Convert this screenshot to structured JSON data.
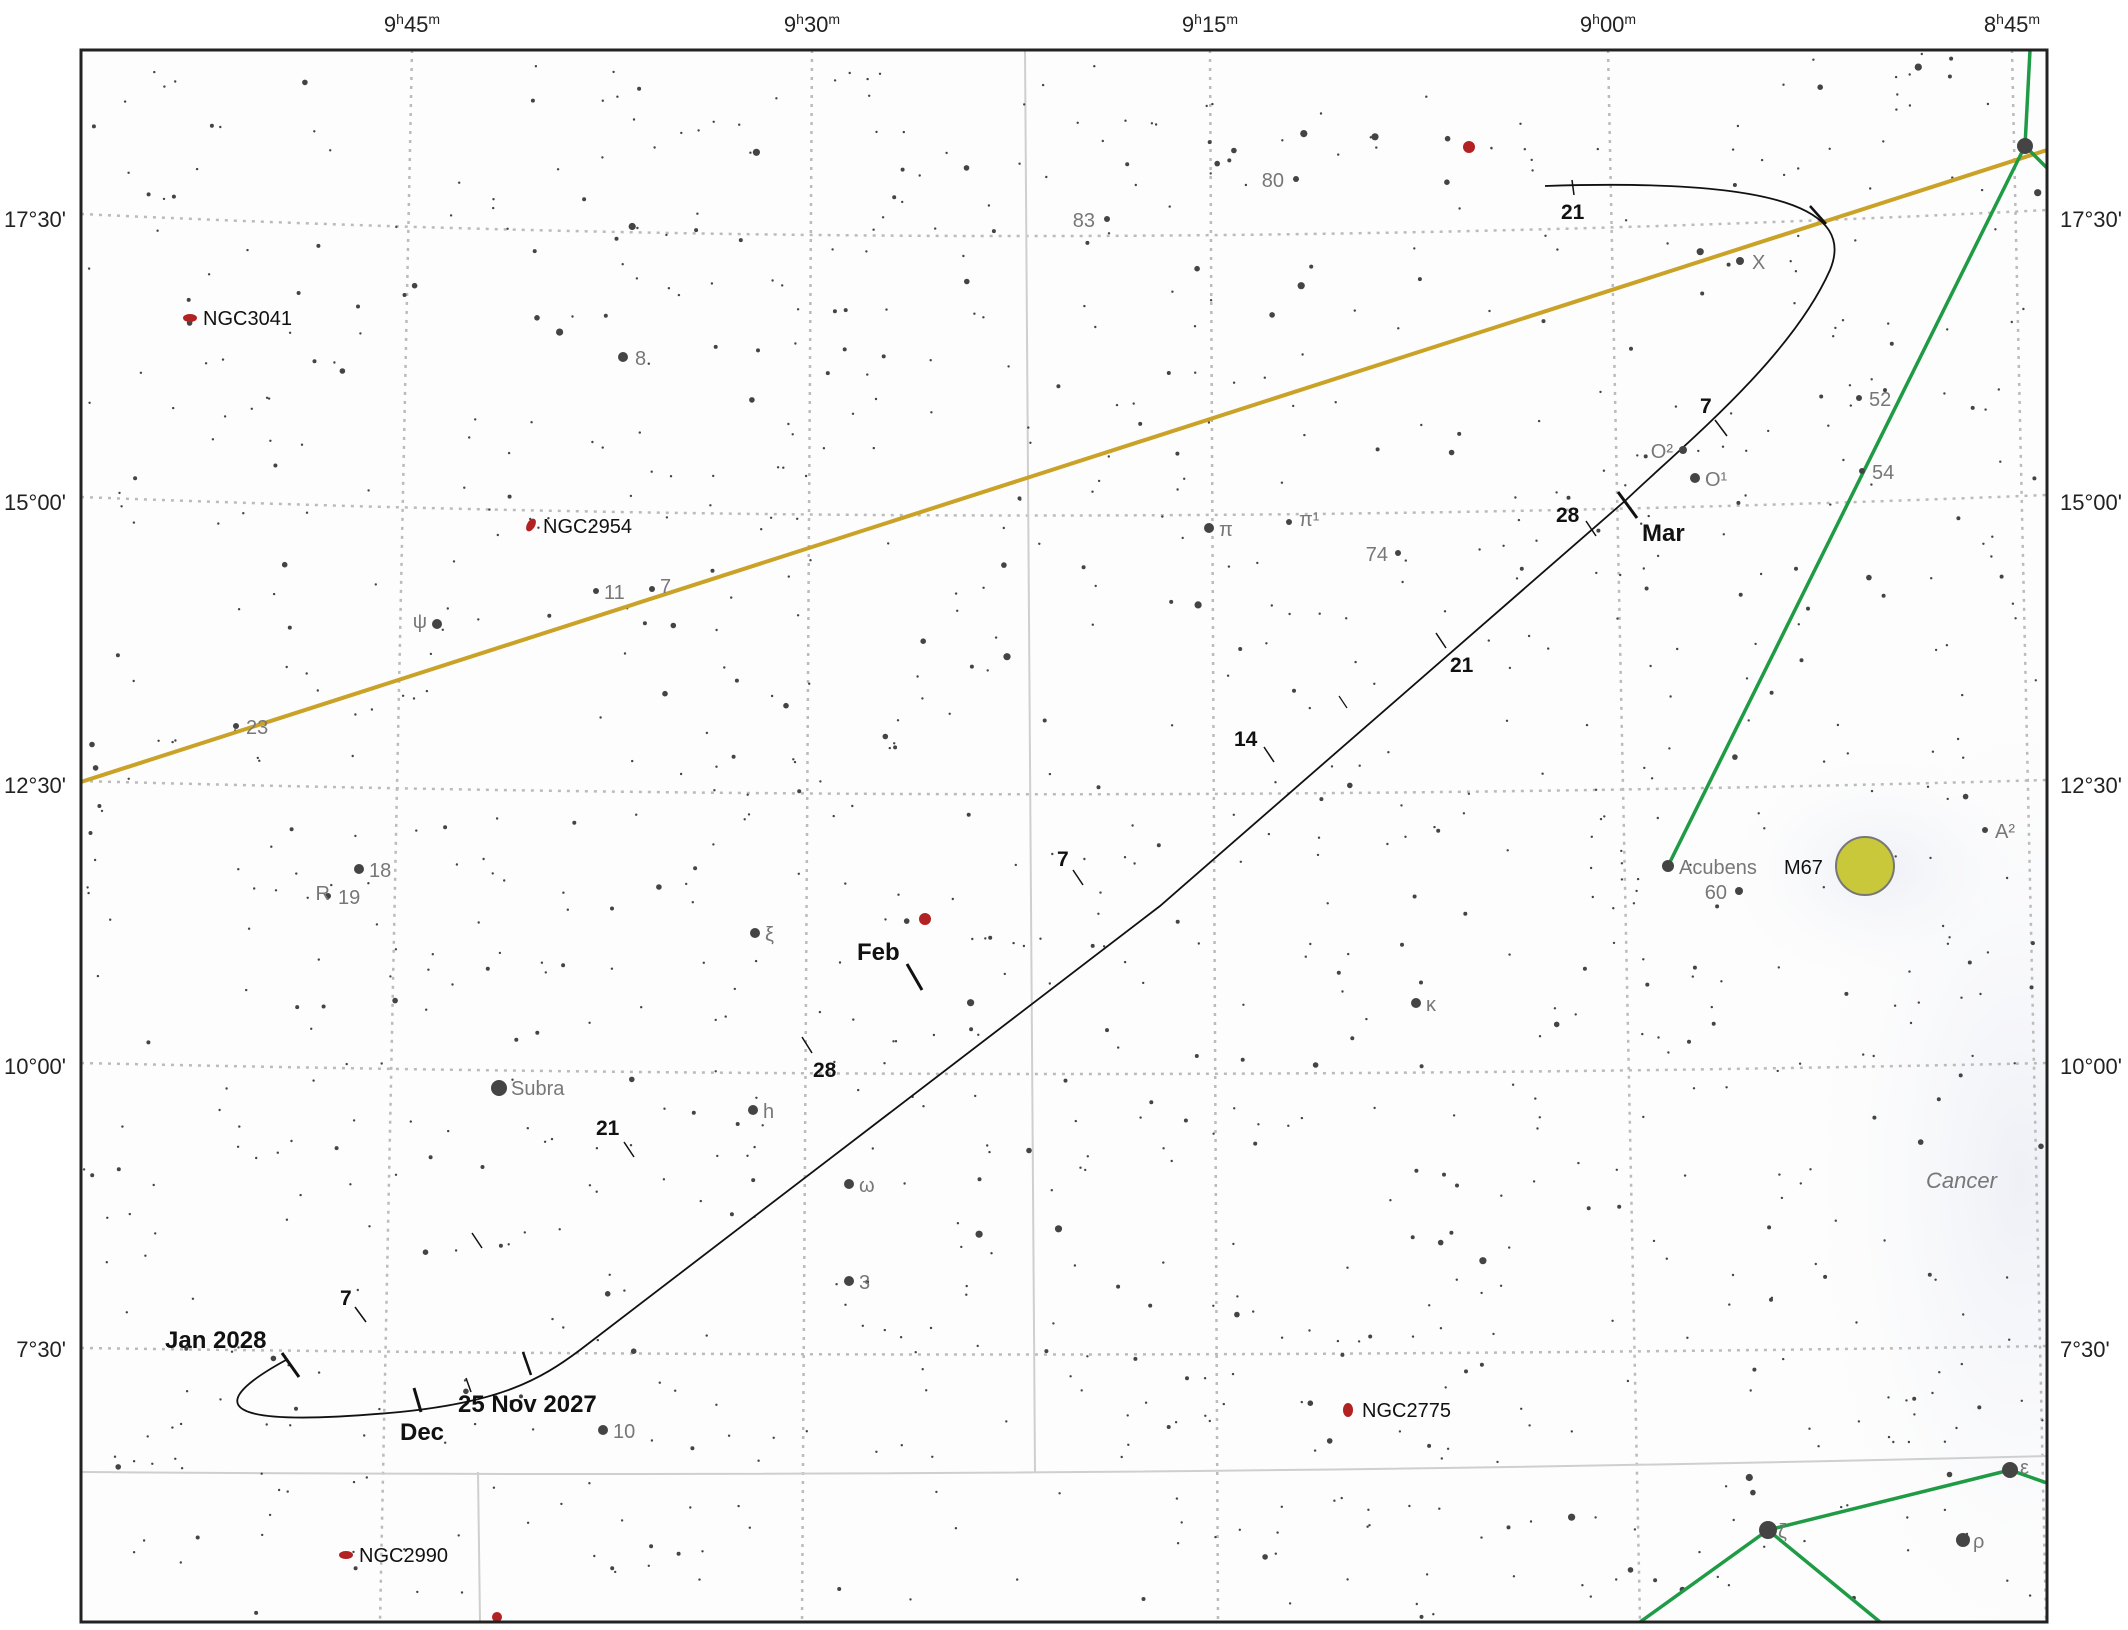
{
  "ra_labels": [
    "9h45m",
    "9h30m",
    "9h15m",
    "9h00m",
    "8h45m"
  ],
  "ra_parts": [
    {
      "h": "9",
      "hs": "h",
      "m": "45",
      "ms": "m"
    },
    {
      "h": "9",
      "hs": "h",
      "m": "30",
      "ms": "m"
    },
    {
      "h": "9",
      "hs": "h",
      "m": "15",
      "ms": "m"
    },
    {
      "h": "9",
      "hs": "h",
      "m": "00",
      "ms": "m"
    },
    {
      "h": "8",
      "hs": "h",
      "m": "45",
      "ms": "m"
    }
  ],
  "dec_labels": [
    "17°30'",
    "15°00'",
    "12°30'",
    "10°00'",
    "7°30'"
  ],
  "constellation_name": "Cancer",
  "colors": {
    "ecliptic": "#c9a227",
    "constellation_lines": "#1f9a45",
    "galaxy": "#b22222",
    "cluster": "#c8c83a",
    "star": "#444444",
    "path": "#111111",
    "grid": "#bbbbbb"
  },
  "comet_path": {
    "labels": {
      "start": "25 Nov 2027",
      "dec": "Dec",
      "jan": "Jan 2028",
      "jan7": "7",
      "jan21": "21",
      "jan28": "28",
      "feb": "Feb",
      "feb7": "7",
      "feb14": "14",
      "feb21": "21",
      "feb28": "28",
      "mar": "Mar",
      "mar7": "7",
      "mar21": "21"
    }
  },
  "objects": {
    "galaxies": [
      "NGC3041",
      "NGC2954",
      "NGC2775",
      "NGC2990"
    ],
    "cluster": "M67",
    "named_stars": [
      "Acubens",
      "Subra"
    ],
    "star_labels": [
      "8",
      "80",
      "83",
      "X",
      "52",
      "54",
      "O²",
      "O¹",
      "π",
      "π¹",
      "74",
      "11",
      "7",
      "ψ",
      "23",
      "18",
      "19",
      "R",
      "ξ",
      "κ",
      "60",
      "A²",
      "h",
      "ω",
      "3",
      "10",
      "ρ",
      "ε",
      "ζ"
    ]
  }
}
